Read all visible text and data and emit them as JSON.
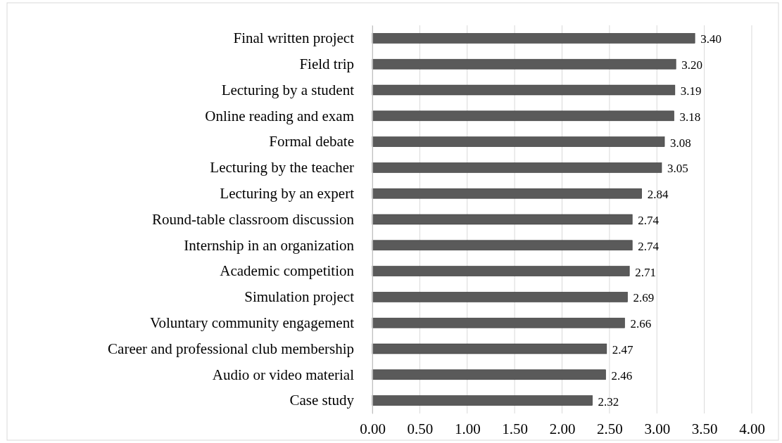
{
  "chart_data": {
    "type": "bar",
    "orientation": "horizontal",
    "categories": [
      "Final written project",
      "Field trip",
      "Lecturing by a student",
      "Online reading and exam",
      "Formal debate",
      "Lecturing by the teacher",
      "Lecturing by an expert",
      "Round-table classroom discussion",
      "Internship in an organization",
      "Academic competition",
      "Simulation project",
      "Voluntary community engagement",
      "Career and professional club membership",
      "Audio or video material",
      "Case study"
    ],
    "values": [
      3.4,
      3.2,
      3.19,
      3.18,
      3.08,
      3.05,
      2.84,
      2.74,
      2.74,
      2.71,
      2.69,
      2.66,
      2.47,
      2.46,
      2.32
    ],
    "value_labels": [
      "3.40",
      "3.20",
      "3.19",
      "3.18",
      "3.08",
      "3.05",
      "2.84",
      "2.74",
      "2.74",
      "2.71",
      "2.69",
      "2.66",
      "2.47",
      "2.46",
      "2.32"
    ],
    "color": "#5a5a5a",
    "xlim": [
      0,
      4
    ],
    "xticks": [
      {
        "value": 0,
        "label": "0.00"
      },
      {
        "value": 0.5,
        "label": "0.50"
      },
      {
        "value": 1,
        "label": "1.00"
      },
      {
        "value": 1.5,
        "label": "1.50"
      },
      {
        "value": 2,
        "label": "2.00"
      },
      {
        "value": 2.5,
        "label": "2.50"
      },
      {
        "value": 3,
        "label": "3.00"
      },
      {
        "value": 3.5,
        "label": "3.50"
      },
      {
        "value": 4,
        "label": "4.00"
      }
    ],
    "grid": "x"
  }
}
